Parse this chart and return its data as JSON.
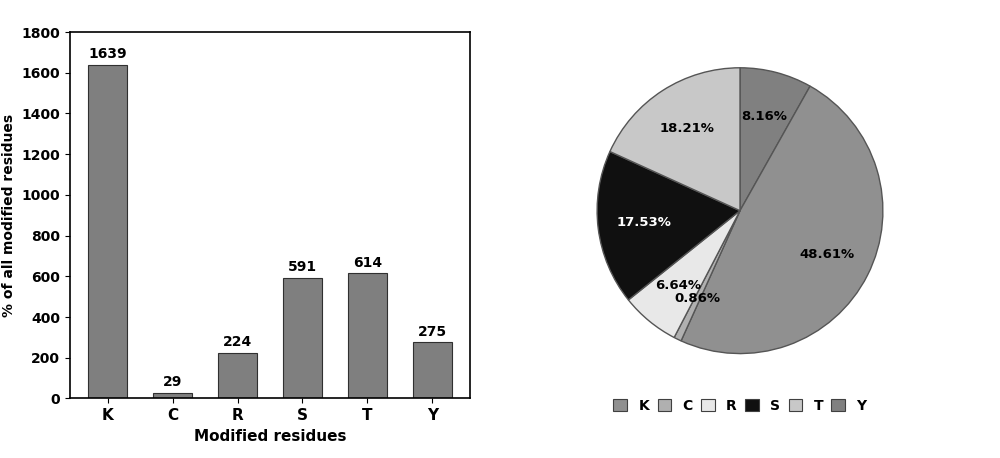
{
  "bar_categories": [
    "K",
    "C",
    "R",
    "S",
    "T",
    "Y"
  ],
  "bar_values": [
    1639,
    29,
    224,
    591,
    614,
    275
  ],
  "bar_color": "#7f7f7f",
  "bar_ylabel": "% of all modified residues",
  "bar_xlabel": "Modified residues",
  "bar_ylim": [
    0,
    1800
  ],
  "bar_yticks": [
    0,
    200,
    400,
    600,
    800,
    1000,
    1200,
    1400,
    1600,
    1800
  ],
  "pie_order": [
    "Y",
    "K",
    "C",
    "R",
    "S",
    "T"
  ],
  "pie_values_ordered": [
    8.16,
    48.61,
    0.86,
    6.64,
    17.53,
    18.21
  ],
  "pie_colors_ordered": [
    "#808080",
    "#909090",
    "#b0b0b0",
    "#e8e8e8",
    "#101010",
    "#c8c8c8"
  ],
  "pie_pct_colors": [
    "black",
    "black",
    "black",
    "black",
    "white",
    "black"
  ],
  "pie_startangle": 90,
  "legend_labels": [
    "K",
    "C",
    "R",
    "S",
    "T",
    "Y"
  ],
  "legend_colors": [
    "#909090",
    "#b0b0b0",
    "#e8e8e8",
    "#101010",
    "#c8c8c8",
    "#808080"
  ]
}
